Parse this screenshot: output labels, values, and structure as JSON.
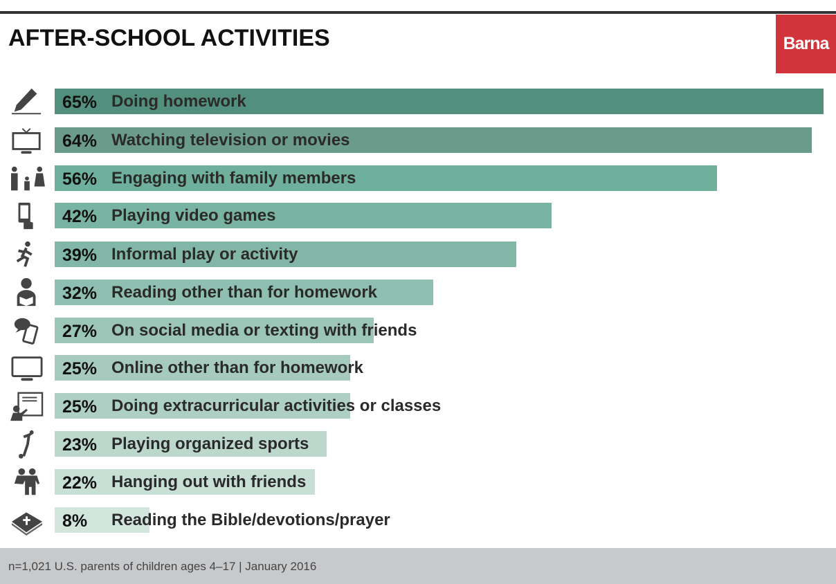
{
  "title": "AFTER-SCHOOL ACTIVITIES",
  "logo": "Barna",
  "footer_note": "n=1,021 U.S. parents of children ages 4–17 | January 2016",
  "chart_data": {
    "type": "bar",
    "orientation": "horizontal",
    "title": "AFTER-SCHOOL ACTIVITIES",
    "xlim": [
      0,
      65
    ],
    "categories": [
      "Doing homework",
      "Watching television or movies",
      "Engaging with family members",
      "Playing video games",
      "Informal play or activity",
      "Reading other than for homework",
      "On social media or texting with friends",
      "Online other than for homework",
      "Doing extracurricular activities or classes",
      "Playing organized sports",
      "Hanging out with friends",
      "Reading the Bible/devotions/prayer"
    ],
    "values": [
      65,
      64,
      56,
      42,
      39,
      32,
      27,
      25,
      25,
      23,
      22,
      8
    ],
    "labels": [
      "65%",
      "64%",
      "56%",
      "42%",
      "39%",
      "32%",
      "27%",
      "25%",
      "25%",
      "23%",
      "22%",
      "8%"
    ],
    "icons": [
      "pencil-icon",
      "television-icon",
      "family-icon",
      "phone-game-icon",
      "running-icon",
      "reading-person-icon",
      "chat-phone-icon",
      "monitor-icon",
      "teacher-board-icon",
      "soccer-player-icon",
      "friends-icon",
      "bible-icon"
    ],
    "colors": [
      "#538f7d",
      "#6a9b8b",
      "#6fb09d",
      "#79b3a2",
      "#82b7a7",
      "#8fbfb0",
      "#9ac5b7",
      "#a6cbbe",
      "#aecfc3",
      "#bcd8cd",
      "#c8dfd6",
      "#d3e6de"
    ]
  }
}
